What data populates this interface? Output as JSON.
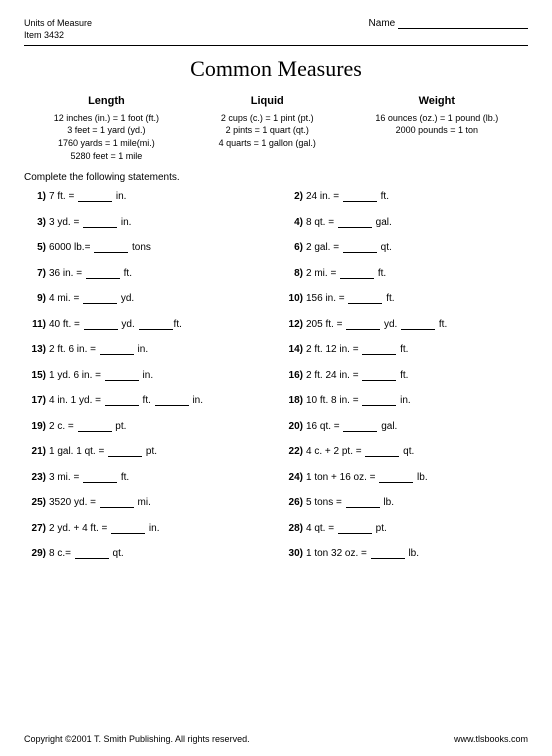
{
  "header": {
    "line1": "Units of Measure",
    "line2": "Item 3432",
    "name_label": "Name"
  },
  "title": "Common Measures",
  "ref": [
    {
      "h": "Length",
      "rows": [
        "12 inches (in.)  =  1 foot (ft.)",
        "3 feet  =  1 yard (yd.)",
        "1760 yards  =  1 mile(mi.)",
        "5280 feet  =  1 mile"
      ]
    },
    {
      "h": "Liquid",
      "rows": [
        "2 cups (c.)  =  1 pint (pt.)",
        "2 pints  =  1 quart (qt.)",
        "4 quarts  =  1 gallon (gal.)"
      ]
    },
    {
      "h": "Weight",
      "rows": [
        "16 ounces (oz.)  =  1 pound  (lb.)",
        "2000 pounds  =  1 ton"
      ]
    }
  ],
  "instr": "Complete the following statements.",
  "q": [
    {
      "n": "1)",
      "a": "7 ft. = ",
      "b": " in."
    },
    {
      "n": "2)",
      "a": "24 in. = ",
      "b": " ft."
    },
    {
      "n": "3)",
      "a": "3 yd. = ",
      "b": " in."
    },
    {
      "n": "4)",
      "a": "8 qt. = ",
      "b": " gal."
    },
    {
      "n": "5)",
      "a": "6000 lb.= ",
      "b": " tons"
    },
    {
      "n": "6)",
      "a": "2 gal. = ",
      "b": " qt."
    },
    {
      "n": "7)",
      "a": "36 in. = ",
      "b": " ft."
    },
    {
      "n": "8)",
      "a": "2 mi. = ",
      "b": " ft."
    },
    {
      "n": "9)",
      "a": "4 mi. = ",
      "b": " yd."
    },
    {
      "n": "10)",
      "a": "156 in. = ",
      "b": " ft."
    },
    {
      "n": "11)",
      "a": "40 ft. = ",
      "b": " yd. ",
      "c": "ft."
    },
    {
      "n": "12)",
      "a": "205 ft. = ",
      "b": " yd. ",
      "c": " ft."
    },
    {
      "n": "13)",
      "a": "2 ft. 6 in. = ",
      "b": " in."
    },
    {
      "n": "14)",
      "a": "2 ft. 12 in. = ",
      "b": " ft."
    },
    {
      "n": "15)",
      "a": "1 yd. 6 in. = ",
      "b": " in."
    },
    {
      "n": "16)",
      "a": "2 ft. 24 in. = ",
      "b": " ft."
    },
    {
      "n": "17)",
      "a": "4 in. 1 yd. = ",
      "b": " ft. ",
      "c": " in."
    },
    {
      "n": "18)",
      "a": "10 ft.  8 in. = ",
      "b": " in."
    },
    {
      "n": "19)",
      "a": "2 c. = ",
      "b": " pt."
    },
    {
      "n": "20)",
      "a": "16 qt. = ",
      "b": " gal."
    },
    {
      "n": "21)",
      "a": "1 gal. 1 qt. = ",
      "b": " pt."
    },
    {
      "n": "22)",
      "a": "4 c. + 2 pt. = ",
      "b": " qt."
    },
    {
      "n": "23)",
      "a": "3 mi. = ",
      "b": " ft."
    },
    {
      "n": "24)",
      "a": "1 ton + 16 oz. = ",
      "b": " lb."
    },
    {
      "n": "25)",
      "a": "3520 yd. = ",
      "b": " mi."
    },
    {
      "n": "26)",
      "a": "5 tons = ",
      "b": " lb."
    },
    {
      "n": "27)",
      "a": "2 yd. + 4 ft. = ",
      "b": " in."
    },
    {
      "n": "28)",
      "a": "4 qt. = ",
      "b": " pt."
    },
    {
      "n": "29)",
      "a": "8 c.= ",
      "b": " qt."
    },
    {
      "n": "30)",
      "a": "1 ton 32 oz. = ",
      "b": " lb."
    }
  ],
  "footer": {
    "l": "Copyright ©2001 T. Smith Publishing.  All rights reserved.",
    "r": "www.tlsbooks.com"
  }
}
